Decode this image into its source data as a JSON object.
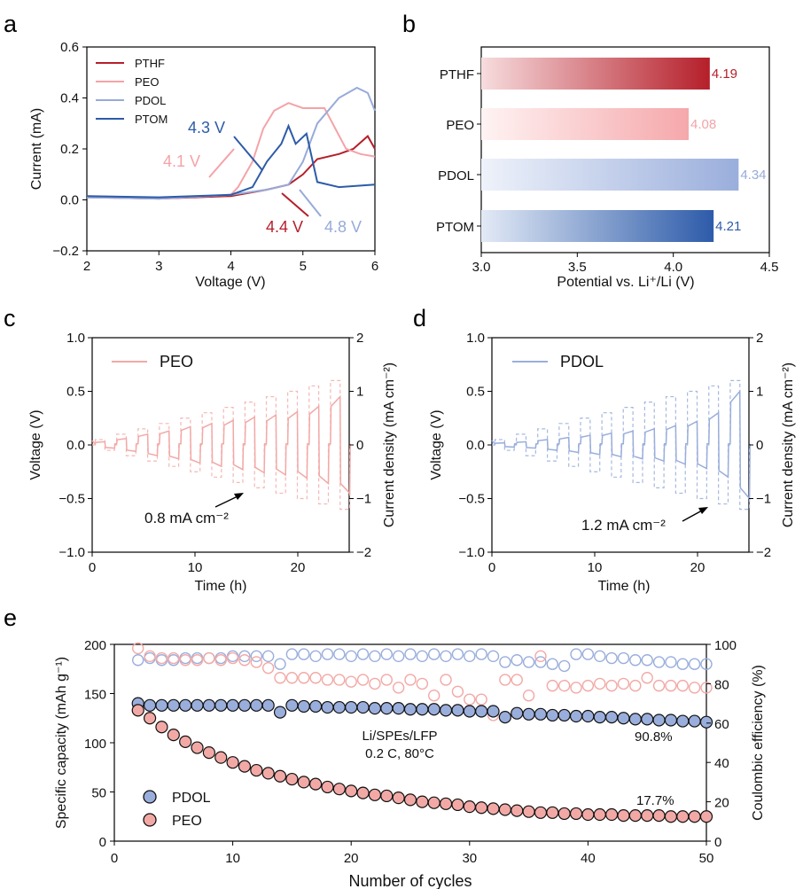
{
  "colors": {
    "pthf": "#b51f2a",
    "peo": "#f4a3a8",
    "pdol": "#97abd8",
    "ptom": "#2d5ba9",
    "peo_fill": "#f2a9a6",
    "pdol_fill": "#9aaedc"
  },
  "panels": {
    "a": {
      "letter": "a",
      "xlabel": "Voltage (V)",
      "ylabel": "Current (mA)",
      "xticks": [
        "2",
        "3",
        "4",
        "5",
        "6"
      ],
      "yticks": [
        "0.6",
        "0.4",
        "0.2",
        "0.0",
        "−0.2"
      ],
      "legend": [
        "PTHF",
        "PEO",
        "PDOL",
        "PTOM"
      ],
      "annotations": [
        "4.3 V",
        "4.1 V",
        "4.4 V",
        "4.8 V"
      ]
    },
    "b": {
      "letter": "b",
      "xlabel": "Potential vs. Li⁺/Li (V)",
      "xticks": [
        "3.0",
        "3.5",
        "4.0",
        "4.5"
      ],
      "bars": [
        {
          "label": "PTHF",
          "value_text": "4.19"
        },
        {
          "label": "PEO",
          "value_text": "4.08"
        },
        {
          "label": "PDOL",
          "value_text": "4.34"
        },
        {
          "label": "PTOM",
          "value_text": "4.21"
        }
      ]
    },
    "c": {
      "letter": "c",
      "xlabel": "Time (h)",
      "ylabel": "Voltage (V)",
      "y2label": "Current density (mA cm⁻²)",
      "legend": "PEO",
      "annotation": "0.8 mA cm⁻²",
      "xticks": [
        "0",
        "10",
        "20"
      ],
      "yticks": [
        "1.0",
        "0.5",
        "0.0",
        "−0.5",
        "−1.0"
      ],
      "y2ticks": [
        "2",
        "1",
        "0",
        "−1",
        "−2"
      ]
    },
    "d": {
      "letter": "d",
      "xlabel": "Time (h)",
      "ylabel": "Voltage (V)",
      "y2label": "Current density (mA cm⁻²)",
      "legend": "PDOL",
      "annotation": "1.2 mA cm⁻²",
      "xticks": [
        "0",
        "10",
        "20"
      ],
      "yticks": [
        "1.0",
        "0.5",
        "0.0",
        "−0.5",
        "−1.0"
      ],
      "y2ticks": [
        "2",
        "1",
        "0",
        "−1",
        "−2"
      ]
    },
    "e": {
      "letter": "e",
      "xlabel": "Number of cycles",
      "ylabel": "Specific capacity (mAh g⁻¹)",
      "y2label": "Coulombic efficiency (%)",
      "xticks": [
        "0",
        "10",
        "20",
        "30",
        "40",
        "50"
      ],
      "yticks": [
        "200",
        "150",
        "100",
        "50",
        "0"
      ],
      "y2ticks": [
        "100",
        "80",
        "60",
        "40",
        "20",
        "0"
      ],
      "condition_line1": "Li/SPEs/LFP",
      "condition_line2": "0.2 C, 80°C",
      "pdol_retention": "90.8%",
      "peo_retention": "17.7%",
      "legend": [
        "PDOL",
        "PEO"
      ]
    }
  },
  "chart_data": [
    {
      "type": "line",
      "panel": "a",
      "xlabel": "Voltage (V)",
      "ylabel": "Current (mA)",
      "xlim": [
        2,
        6
      ],
      "ylim": [
        -0.2,
        0.6
      ],
      "series": [
        {
          "name": "PTHF",
          "x": [
            2,
            3,
            4,
            4.3,
            4.5,
            4.8,
            5.0,
            5.2,
            5.5,
            5.7,
            5.9,
            6.0
          ],
          "y": [
            0.01,
            0.005,
            0.015,
            0.03,
            0.04,
            0.06,
            0.1,
            0.16,
            0.18,
            0.2,
            0.25,
            0.2
          ]
        },
        {
          "name": "PEO",
          "x": [
            2,
            3,
            4,
            4.1,
            4.3,
            4.45,
            4.6,
            4.8,
            5.0,
            5.3,
            5.6,
            5.8,
            6.0
          ],
          "y": [
            0.01,
            0.005,
            0.02,
            0.05,
            0.15,
            0.28,
            0.35,
            0.38,
            0.36,
            0.36,
            0.2,
            0.18,
            0.17
          ]
        },
        {
          "name": "PDOL",
          "x": [
            2,
            3,
            4,
            4.5,
            4.8,
            5.0,
            5.2,
            5.5,
            5.75,
            5.9,
            6.0
          ],
          "y": [
            0.01,
            0.005,
            0.02,
            0.04,
            0.06,
            0.15,
            0.3,
            0.4,
            0.44,
            0.42,
            0.35
          ]
        },
        {
          "name": "PTOM",
          "x": [
            2,
            3,
            4,
            4.3,
            4.5,
            4.7,
            4.8,
            4.9,
            5.05,
            5.2,
            5.5,
            6.0
          ],
          "y": [
            0.015,
            0.01,
            0.02,
            0.05,
            0.15,
            0.22,
            0.29,
            0.22,
            0.26,
            0.07,
            0.05,
            0.06
          ]
        }
      ]
    },
    {
      "type": "bar",
      "panel": "b",
      "orientation": "horizontal",
      "xlabel": "Potential vs. Li⁺/Li (V)",
      "xlim": [
        3.0,
        4.5
      ],
      "categories": [
        "PTHF",
        "PEO",
        "PDOL",
        "PTOM"
      ],
      "values": [
        4.19,
        4.08,
        4.34,
        4.21
      ]
    },
    {
      "type": "line",
      "panel": "c",
      "xlabel": "Time (h)",
      "ylabel": "Voltage (V)",
      "xlim": [
        0,
        25
      ],
      "ylim": [
        -1.0,
        1.0
      ],
      "y2lim": [
        -2,
        2
      ],
      "series": [
        {
          "name": "PEO",
          "step_hours": 2.08,
          "plateau_voltages": [
            0.03,
            0.06,
            0.1,
            0.13,
            0.17,
            0.2,
            0.23,
            0.26,
            0.28,
            0.31,
            0.36,
            0.45
          ],
          "current_steps": [
            0.1,
            0.2,
            0.3,
            0.4,
            0.5,
            0.6,
            0.7,
            0.8,
            0.9,
            1.0,
            1.1,
            1.2
          ]
        }
      ]
    },
    {
      "type": "line",
      "panel": "d",
      "xlabel": "Time (h)",
      "ylabel": "Voltage (V)",
      "xlim": [
        0,
        25
      ],
      "ylim": [
        -1.0,
        1.0
      ],
      "y2lim": [
        -2,
        2
      ],
      "series": [
        {
          "name": "PDOL",
          "step_hours": 2.08,
          "plateau_voltages": [
            0.02,
            0.03,
            0.05,
            0.07,
            0.09,
            0.11,
            0.13,
            0.15,
            0.18,
            0.22,
            0.3,
            0.5
          ],
          "current_steps": [
            0.1,
            0.2,
            0.3,
            0.4,
            0.5,
            0.6,
            0.7,
            0.8,
            0.9,
            1.0,
            1.1,
            1.2
          ]
        }
      ]
    },
    {
      "type": "scatter",
      "panel": "e",
      "xlabel": "Number of cycles",
      "ylabel": "Specific capacity (mAh g⁻¹)",
      "y2label": "Coulombic efficiency (%)",
      "xlim": [
        0,
        50
      ],
      "ylim": [
        0,
        200
      ],
      "y2lim": [
        0,
        100
      ],
      "cycles": [
        2,
        3,
        4,
        5,
        6,
        7,
        8,
        9,
        10,
        11,
        12,
        13,
        14,
        15,
        16,
        17,
        18,
        19,
        20,
        21,
        22,
        23,
        24,
        25,
        26,
        27,
        28,
        29,
        30,
        31,
        32,
        33,
        34,
        35,
        36,
        37,
        38,
        39,
        40,
        41,
        42,
        43,
        44,
        45,
        46,
        47,
        48,
        49,
        50
      ],
      "series": [
        {
          "name": "PDOL",
          "axis": "capacity",
          "values": [
            140,
            138,
            138,
            138,
            138,
            138,
            138,
            138,
            138,
            138,
            138,
            138,
            131,
            138,
            137,
            137,
            136,
            136,
            136,
            136,
            135,
            135,
            135,
            134,
            134,
            134,
            133,
            133,
            132,
            132,
            132,
            126,
            130,
            129,
            129,
            128,
            128,
            127,
            127,
            126,
            126,
            125,
            124,
            124,
            123,
            123,
            122,
            122,
            121
          ]
        },
        {
          "name": "PEO",
          "axis": "capacity",
          "values": [
            133,
            125,
            116,
            108,
            101,
            95,
            90,
            85,
            80,
            76,
            72,
            69,
            66,
            63,
            60,
            58,
            55,
            53,
            51,
            49,
            47,
            46,
            44,
            42,
            40,
            39,
            38,
            37,
            35,
            34,
            33,
            32,
            31,
            30,
            29,
            29,
            28,
            28,
            27,
            27,
            27,
            26,
            26,
            26,
            26,
            25,
            25,
            25,
            25
          ]
        },
        {
          "name": "PDOL",
          "axis": "coulombic_efficiency",
          "values": [
            92,
            93,
            92,
            92,
            93,
            93,
            93,
            93,
            94,
            94,
            94,
            94,
            90,
            95,
            95,
            94,
            95,
            95,
            94,
            95,
            94,
            95,
            94,
            95,
            94,
            95,
            94,
            95,
            94,
            95,
            94,
            91,
            92,
            91,
            91,
            90,
            89,
            95,
            95,
            94,
            93,
            93,
            92,
            92,
            91,
            91,
            90,
            90,
            90
          ]
        },
        {
          "name": "PEO",
          "axis": "coulombic_efficiency",
          "values": [
            98,
            94,
            93,
            93,
            92,
            92,
            93,
            92,
            93,
            92,
            91,
            88,
            83,
            83,
            83,
            83,
            82,
            82,
            81,
            82,
            80,
            82,
            78,
            82,
            80,
            74,
            82,
            76,
            72,
            72,
            64,
            82,
            82,
            74,
            94,
            79,
            79,
            78,
            79,
            80,
            79,
            80,
            79,
            83,
            79,
            79,
            79,
            78,
            78
          ]
        }
      ]
    }
  ]
}
